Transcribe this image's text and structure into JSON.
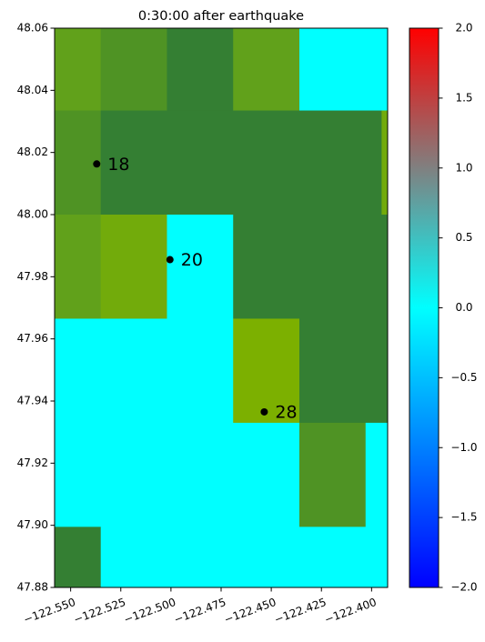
{
  "chart_data": {
    "type": "heatmap",
    "title": "0:30:00 after earthquake",
    "xlabel": "",
    "ylabel": "",
    "xlim": [
      -122.558,
      -122.392
    ],
    "ylim": [
      47.88,
      48.06
    ],
    "x_ticks": [
      -122.55,
      -122.525,
      -122.5,
      -122.475,
      -122.45,
      -122.425,
      -122.4
    ],
    "x_tick_labels": [
      "−122.550",
      "−122.525",
      "−122.500",
      "−122.475",
      "−122.450",
      "−122.425",
      "−122.400"
    ],
    "y_ticks": [
      47.88,
      47.9,
      47.92,
      47.94,
      47.96,
      47.98,
      48.0,
      48.02,
      48.04,
      48.06
    ],
    "y_tick_labels": [
      "47.88",
      "47.90",
      "47.92",
      "47.94",
      "47.96",
      "47.98",
      "48.00",
      "48.02",
      "48.04",
      "48.06"
    ],
    "cells": [
      {
        "x0": -122.558,
        "x1": -122.535,
        "y0": 48.0335,
        "y1": 48.06,
        "color": "#61a11b"
      },
      {
        "x0": -122.535,
        "x1": -122.502,
        "y0": 48.0335,
        "y1": 48.06,
        "color": "#4f9324"
      },
      {
        "x0": -122.502,
        "x1": -122.469,
        "y0": 48.0335,
        "y1": 48.06,
        "color": "#347f33"
      },
      {
        "x0": -122.469,
        "x1": -122.436,
        "y0": 48.0335,
        "y1": 48.06,
        "color": "#61a11b"
      },
      {
        "x0": -122.436,
        "x1": -122.392,
        "y0": 48.0335,
        "y1": 48.06,
        "color": "#00ffff"
      },
      {
        "x0": -122.558,
        "x1": -122.535,
        "y0": 48.0,
        "y1": 48.0335,
        "color": "#4f9324"
      },
      {
        "x0": -122.535,
        "x1": -122.395,
        "y0": 48.0,
        "y1": 48.0335,
        "color": "#347f33"
      },
      {
        "x0": -122.395,
        "x1": -122.392,
        "y0": 48.0,
        "y1": 48.0335,
        "color": "#72ab0b"
      },
      {
        "x0": -122.558,
        "x1": -122.535,
        "y0": 47.9665,
        "y1": 48.0,
        "color": "#61a11b"
      },
      {
        "x0": -122.535,
        "x1": -122.502,
        "y0": 47.9665,
        "y1": 48.0,
        "color": "#72ab0b"
      },
      {
        "x0": -122.502,
        "x1": -122.469,
        "y0": 47.9665,
        "y1": 48.0,
        "color": "#00ffff"
      },
      {
        "x0": -122.469,
        "x1": -122.392,
        "y0": 47.9665,
        "y1": 48.0,
        "color": "#347f33"
      },
      {
        "x0": -122.558,
        "x1": -122.469,
        "y0": 47.933,
        "y1": 47.9665,
        "color": "#00ffff"
      },
      {
        "x0": -122.469,
        "x1": -122.436,
        "y0": 47.933,
        "y1": 47.9665,
        "color": "#7cb000"
      },
      {
        "x0": -122.436,
        "x1": -122.392,
        "y0": 47.933,
        "y1": 47.9665,
        "color": "#347f33"
      },
      {
        "x0": -122.558,
        "x1": -122.436,
        "y0": 47.8995,
        "y1": 47.933,
        "color": "#00ffff"
      },
      {
        "x0": -122.436,
        "x1": -122.403,
        "y0": 47.8995,
        "y1": 47.933,
        "color": "#4f9324"
      },
      {
        "x0": -122.403,
        "x1": -122.392,
        "y0": 47.8995,
        "y1": 47.933,
        "color": "#00ffff"
      },
      {
        "x0": -122.558,
        "x1": -122.535,
        "y0": 47.88,
        "y1": 47.8995,
        "color": "#347f33"
      },
      {
        "x0": -122.535,
        "x1": -122.392,
        "y0": 47.88,
        "y1": 47.8995,
        "color": "#00ffff"
      }
    ],
    "stations": [
      {
        "label": "18",
        "x": -122.537,
        "y": 48.0163
      },
      {
        "label": "20",
        "x": -122.5005,
        "y": 47.9855
      },
      {
        "label": "28",
        "x": -122.4535,
        "y": 47.9365
      }
    ],
    "colorbar": {
      "range": [
        -2.0,
        2.0
      ],
      "ticks": [
        -2.0,
        -1.5,
        -1.0,
        -0.5,
        0.0,
        0.5,
        1.0,
        1.5,
        2.0
      ],
      "tick_labels": [
        "−2.0",
        "−1.5",
        "−1.0",
        "−0.5",
        "0.0",
        "0.5",
        "1.0",
        "1.5",
        "2.0"
      ],
      "stops": [
        {
          "value": -2.0,
          "color": "#0000ff"
        },
        {
          "value": -1.0,
          "color": "#0080ff"
        },
        {
          "value": 0.0,
          "color": "#00ffff"
        },
        {
          "value": 1.0,
          "color": "#808080"
        },
        {
          "value": 2.0,
          "color": "#ff0000"
        }
      ]
    },
    "grid": false,
    "legend": "none"
  }
}
